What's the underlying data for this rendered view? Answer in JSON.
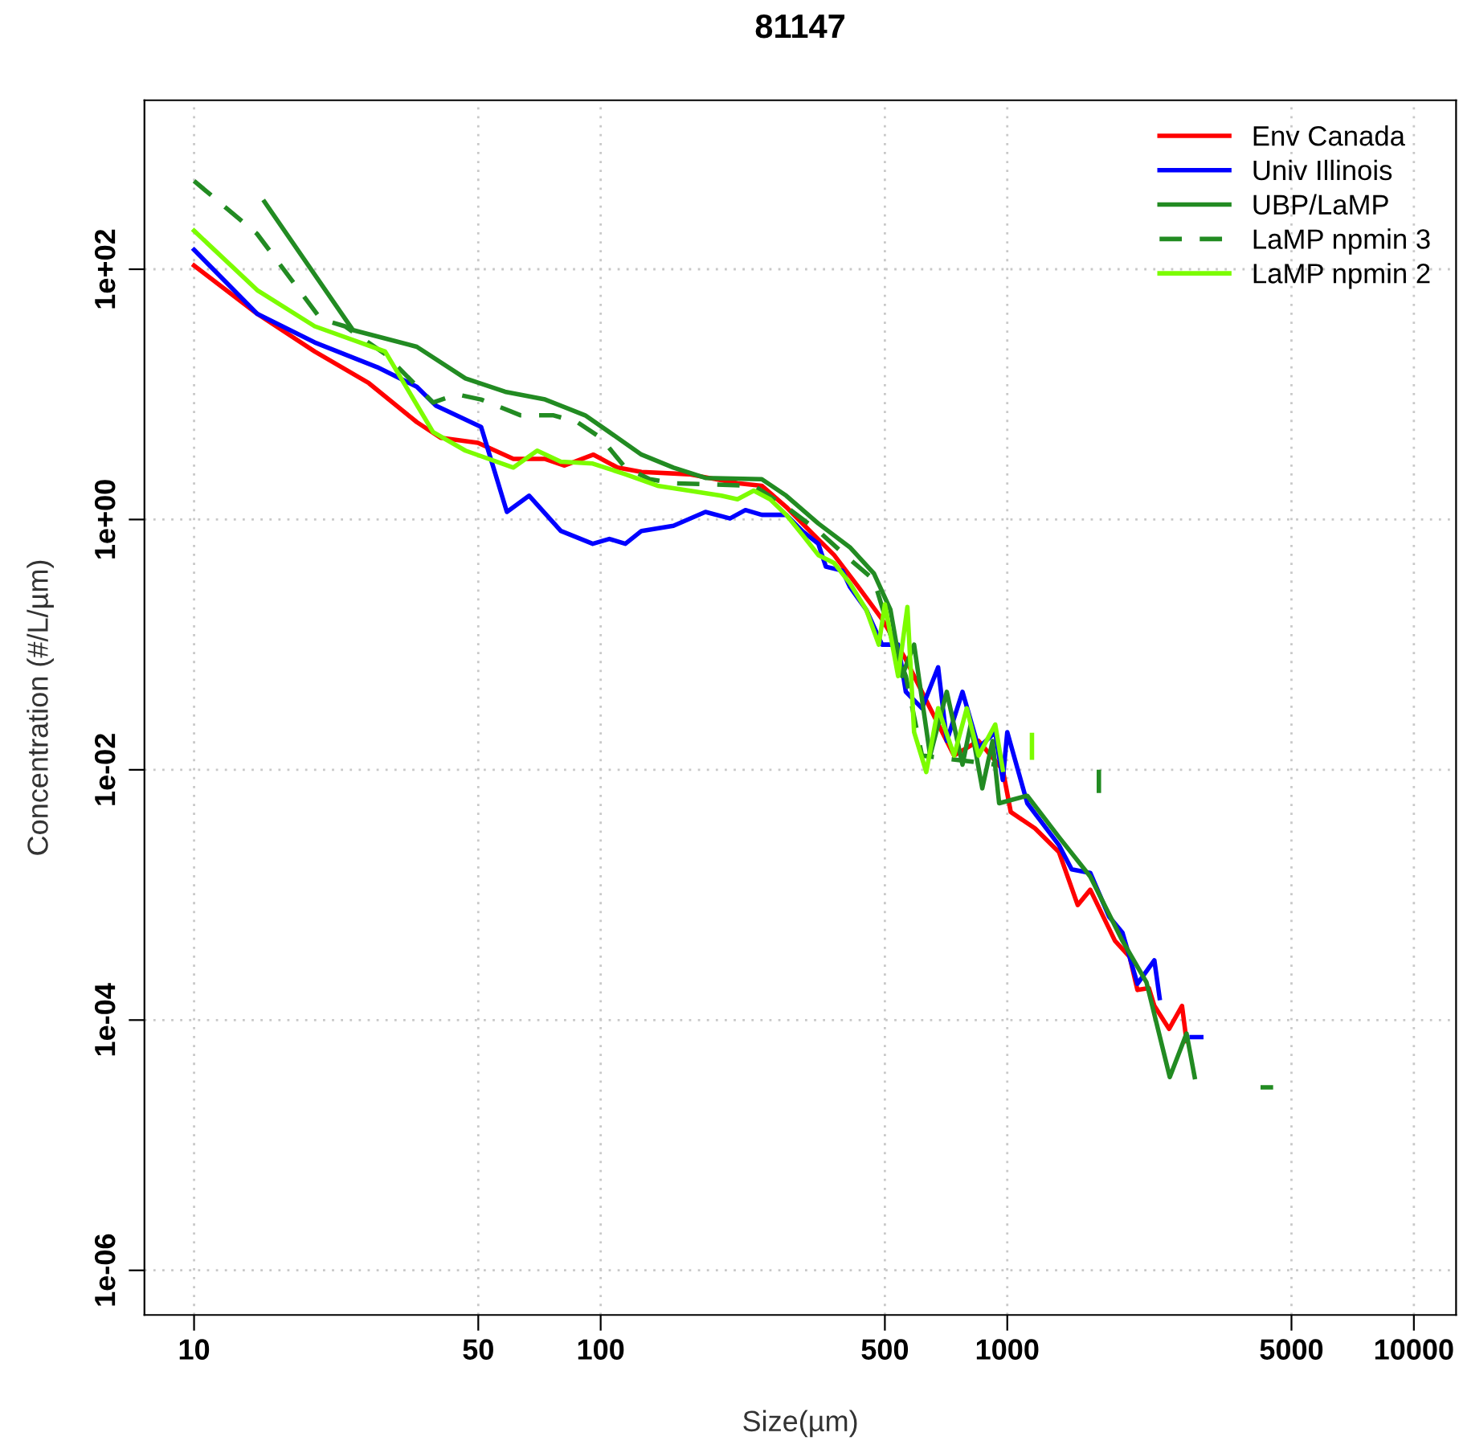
{
  "chart_data": {
    "type": "line",
    "title": "81147",
    "xlabel": "Size(µm)",
    "ylabel": "Concentration (#/L/µm)",
    "log": "xy",
    "grid": true,
    "legend": "top right",
    "line_style": "solid",
    "xlim": [
      7.55,
      12700
    ],
    "ylim": [
      4.4e-07,
      2240
    ],
    "xticks": [
      10,
      50,
      100,
      500,
      1000,
      5000,
      10000
    ],
    "yticks": [
      {
        "value": 100,
        "label": "1e+02"
      },
      {
        "value": 1,
        "label": "1e+00"
      },
      {
        "value": 0.01,
        "label": "1e-02"
      },
      {
        "value": 0.0001,
        "label": "1e-04"
      },
      {
        "value": 1e-06,
        "label": "1e-06"
      }
    ],
    "series": [
      {
        "name": "Env Canada",
        "color": "#ff0000",
        "x": [
          10,
          14.3,
          19.8,
          26.9,
          35.3,
          40.4,
          49.9,
          61,
          73,
          81.5,
          96,
          110,
          126,
          165,
          217,
          249,
          286,
          327,
          375,
          430,
          492,
          563,
          646,
          740,
          850,
          975,
          1020,
          1170,
          1340,
          1490,
          1600,
          1840,
          2000,
          2090,
          2230,
          2300,
          2500,
          2690,
          2760
        ],
        "values": [
          107,
          44,
          22,
          12.3,
          6.0,
          4.5,
          4.1,
          3.05,
          3.05,
          2.7,
          3.3,
          2.6,
          2.4,
          2.3,
          1.95,
          1.86,
          1.26,
          0.81,
          0.52,
          0.29,
          0.16,
          0.076,
          0.031,
          0.013,
          0.017,
          0.01,
          0.0046,
          0.0034,
          0.0022,
          0.00083,
          0.0011,
          0.00043,
          0.00032,
          0.000174,
          0.00018,
          0.00013,
          8.5e-05,
          0.00013,
          6.8e-05
        ]
      },
      {
        "name": "Univ Illinois",
        "color": "#0000ff",
        "x": [
          10,
          14.3,
          19.8,
          28.2,
          35.3,
          39.4,
          50.8,
          58.8,
          66.7,
          79.8,
          95.6,
          105,
          115,
          126,
          151,
          181,
          208,
          227,
          249,
          286,
          313,
          343,
          358,
          393,
          410,
          450,
          492,
          539,
          563,
          617,
          676,
          710,
          776,
          850,
          934,
          975,
          1000,
          1120,
          1340,
          1440,
          1600,
          1780,
          1920,
          2090,
          2300,
          2370,
          null,
          2840,
          3000
        ],
        "values": [
          143,
          44,
          26,
          16.5,
          11.5,
          8.1,
          5.5,
          1.15,
          1.55,
          0.81,
          0.64,
          0.7,
          0.64,
          0.81,
          0.89,
          1.15,
          1.02,
          1.19,
          1.09,
          1.09,
          0.81,
          0.64,
          0.42,
          0.39,
          0.29,
          0.19,
          0.1,
          0.1,
          0.042,
          0.031,
          0.066,
          0.017,
          0.042,
          0.015,
          0.02,
          0.0083,
          0.02,
          0.0054,
          0.0025,
          0.0016,
          0.0015,
          0.00067,
          0.0005,
          0.000195,
          0.0003,
          0.00015,
          null,
          7.3e-05,
          7.3e-05
        ]
      },
      {
        "name": "UBP/LaMP",
        "color": "#228b22",
        "x": [
          14.9,
          24.6,
          35.3,
          46.5,
          58.2,
          73,
          91.6,
          105,
          126,
          151,
          181,
          249,
          286,
          343,
          410,
          470,
          516,
          551,
          590,
          646,
          710,
          776,
          813,
          868,
          920,
          955,
          1120,
          1340,
          1600,
          1920,
          2200,
          2510,
          2760,
          2890,
          null,
          1680,
          1680,
          null,
          4250,
          4450
        ],
        "values": [
          346,
          32.6,
          24,
          13.4,
          10.5,
          9.1,
          6.8,
          5.0,
          3.3,
          2.6,
          2.15,
          2.1,
          1.55,
          0.93,
          0.6,
          0.37,
          0.19,
          0.056,
          0.1,
          0.013,
          0.042,
          0.011,
          0.023,
          0.0071,
          0.017,
          0.0054,
          0.0062,
          0.0029,
          0.0014,
          0.00043,
          0.0002,
          3.5e-05,
          7.8e-05,
          3.5e-05,
          null,
          0.0096,
          0.0068,
          null,
          2.9e-05,
          2.9e-05
        ]
      },
      {
        "name": "LaMP npmin 3",
        "color": "#228b22",
        "line_style": "dashed",
        "x": [
          10,
          14.3,
          20.5,
          23.5,
          29.5,
          38.7,
          44.3,
          50.8,
          63.6,
          76.6,
          87.6,
          100,
          115,
          132,
          151,
          238,
          286,
          343,
          410,
          470,
          516,
          563,
          617,
          934
        ],
        "values": [
          508,
          191,
          40,
          35,
          21,
          8.6,
          10,
          9.1,
          6.8,
          6.8,
          6.0,
          4.5,
          2.6,
          2.1,
          1.95,
          1.86,
          1.26,
          0.81,
          0.48,
          0.33,
          0.12,
          0.056,
          0.013,
          0.011
        ]
      },
      {
        "name": "LaMP npmin 2",
        "color": "#7cfc00",
        "x": [
          10,
          14.3,
          19.8,
          29.5,
          38.7,
          46.5,
          61,
          69.8,
          79.8,
          95.6,
          115,
          138,
          165,
          198,
          217,
          238,
          261,
          286,
          313,
          343,
          375,
          410,
          450,
          483,
          500,
          539,
          568,
          590,
          632,
          676,
          740,
          795,
          850,
          934,
          975,
          null,
          1150,
          1150
        ],
        "values": [
          203,
          68,
          35,
          22,
          5.0,
          3.55,
          2.6,
          3.55,
          2.9,
          2.8,
          2.3,
          1.86,
          1.7,
          1.55,
          1.45,
          1.7,
          1.45,
          1.09,
          0.76,
          0.52,
          0.45,
          0.31,
          0.19,
          0.1,
          0.21,
          0.056,
          0.2,
          0.02,
          0.0096,
          0.031,
          0.013,
          0.031,
          0.013,
          0.023,
          0.01,
          null,
          0.019,
          0.0125
        ]
      }
    ]
  }
}
